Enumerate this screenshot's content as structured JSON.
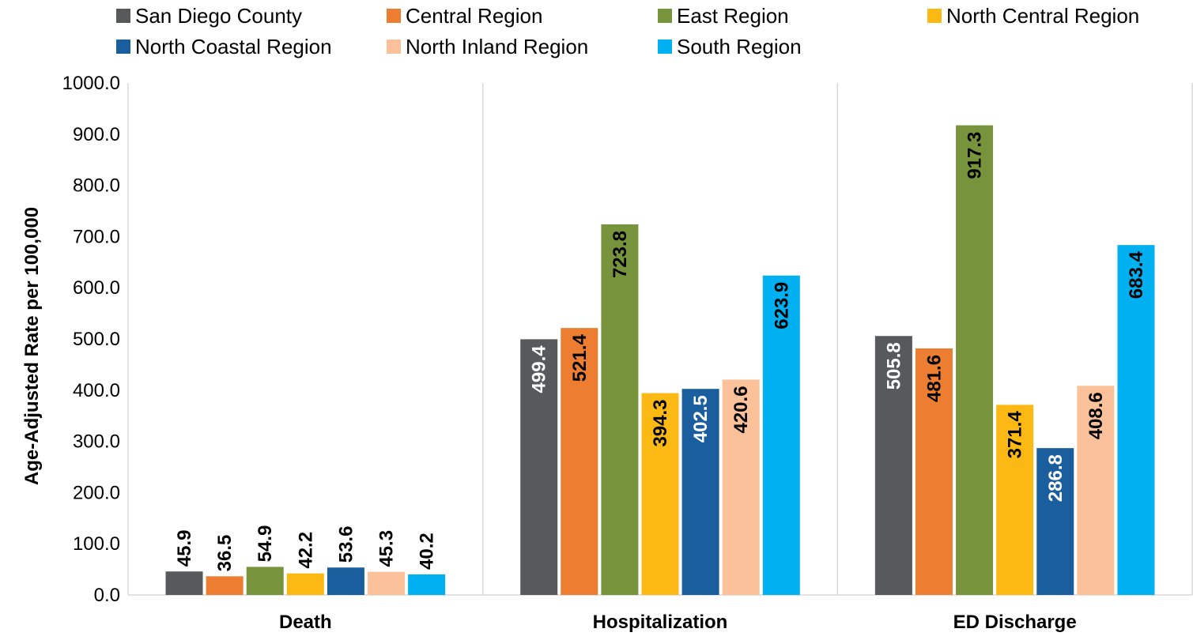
{
  "chart_data": {
    "type": "bar",
    "categories": [
      "Death",
      "Hospitalization",
      "ED Discharge"
    ],
    "ylabel": "Age-Adjusted Rate per 100,000",
    "xlabel": "",
    "ylim": [
      0,
      1000
    ],
    "yticks": [
      "0.0",
      "100.0",
      "200.0",
      "300.0",
      "400.0",
      "500.0",
      "600.0",
      "700.0",
      "800.0",
      "900.0",
      "1000.0"
    ],
    "grid": "vertical category separators",
    "legend": "top",
    "series": [
      {
        "name": "San Diego County",
        "color": "#58595B",
        "values": [
          45.9,
          499.4,
          505.8
        ],
        "labels": [
          "45.9",
          "499.4",
          "505.8"
        ]
      },
      {
        "name": "Central Region",
        "color": "#ED7D31",
        "values": [
          36.5,
          521.4,
          481.6
        ],
        "labels": [
          "36.5",
          "521.4",
          "481.6"
        ]
      },
      {
        "name": "East Region",
        "color": "#77933C",
        "values": [
          54.9,
          723.8,
          917.3
        ],
        "labels": [
          "54.9",
          "723.8",
          "917.3"
        ]
      },
      {
        "name": "North Central Region",
        "color": "#FDB913",
        "values": [
          42.2,
          394.3,
          371.4
        ],
        "labels": [
          "42.2",
          "394.3",
          "371.4"
        ]
      },
      {
        "name": "North Coastal Region",
        "color": "#1A5E9E",
        "values": [
          53.6,
          402.5,
          286.8
        ],
        "labels": [
          "53.6",
          "402.5",
          "286.8"
        ]
      },
      {
        "name": "North Inland Region",
        "color": "#FBC19A",
        "values": [
          45.3,
          420.6,
          408.6
        ],
        "labels": [
          "45.3",
          "420.6",
          "408.6"
        ]
      },
      {
        "name": "South Region",
        "color": "#00B0F0",
        "values": [
          40.2,
          623.9,
          683.4
        ],
        "labels": [
          "40.2",
          "623.9",
          "683.4"
        ]
      }
    ]
  }
}
